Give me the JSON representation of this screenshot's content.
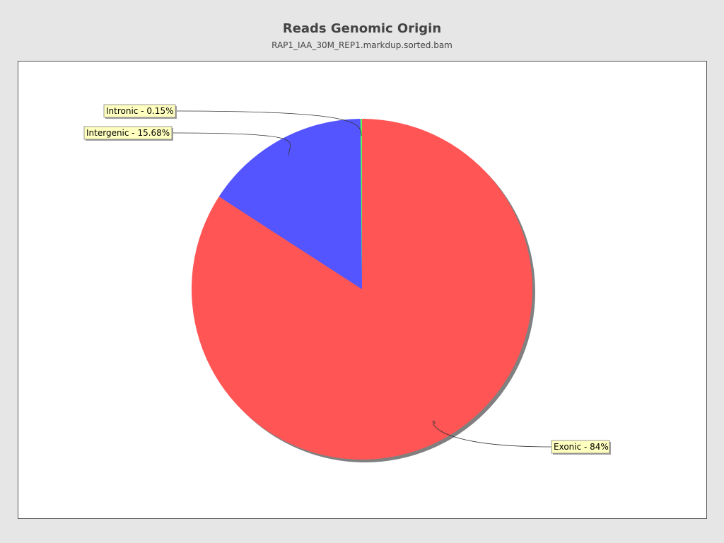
{
  "header": {
    "title": "Reads Genomic Origin",
    "subtitle": "RAP1_IAA_30M_REP1.markdup.sorted.bam"
  },
  "chart_data": {
    "type": "pie",
    "title": "Reads Genomic Origin",
    "subtitle": "RAP1_IAA_30M_REP1.markdup.sorted.bam",
    "slices": [
      {
        "name": "Exonic",
        "value": 84,
        "label": "Exonic - 84%",
        "color": "#ff5555"
      },
      {
        "name": "Intronic",
        "value": 0.15,
        "label": "Intronic - 0.15%",
        "color": "#55ff55"
      },
      {
        "name": "Intergenic",
        "value": 15.68,
        "label": "Intergenic - 15.68%",
        "color": "#5555ff"
      }
    ],
    "label_box_color": "#ffffc0",
    "shadow_color": "#808080"
  }
}
